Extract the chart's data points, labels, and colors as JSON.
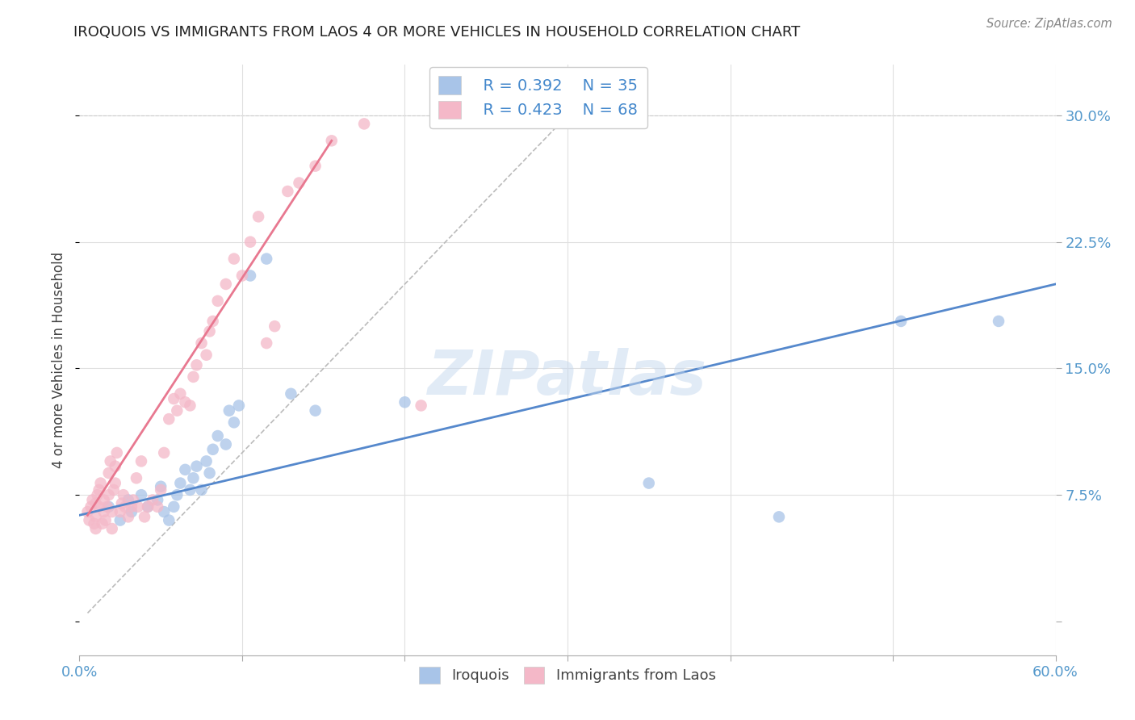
{
  "title": "IROQUOIS VS IMMIGRANTS FROM LAOS 4 OR MORE VEHICLES IN HOUSEHOLD CORRELATION CHART",
  "source": "Source: ZipAtlas.com",
  "ylabel": "4 or more Vehicles in Household",
  "xlim": [
    0.0,
    0.6
  ],
  "ylim": [
    -0.02,
    0.33
  ],
  "xticks": [
    0.0,
    0.1,
    0.2,
    0.3,
    0.4,
    0.5,
    0.6
  ],
  "xticklabels": [
    "0.0%",
    "",
    "",
    "",
    "",
    "",
    "60.0%"
  ],
  "yticks": [
    0.0,
    0.075,
    0.15,
    0.225,
    0.3
  ],
  "yticklabels": [
    "",
    "7.5%",
    "15.0%",
    "22.5%",
    "30.0%"
  ],
  "legend_r1": "R = 0.392",
  "legend_n1": "N = 35",
  "legend_r2": "R = 0.423",
  "legend_n2": "N = 68",
  "legend_color1": "#a8c4e8",
  "legend_color2": "#f4b8c8",
  "dot_color1": "#a8c4e8",
  "dot_color2": "#f4b8c8",
  "line_color1": "#5588cc",
  "line_color2": "#e87890",
  "diagonal_color": "#bbbbbb",
  "watermark": "ZIPatlas",
  "blue_line_x": [
    0.0,
    0.6
  ],
  "blue_line_y": [
    0.063,
    0.2
  ],
  "pink_line_x": [
    0.005,
    0.155
  ],
  "pink_line_y": [
    0.063,
    0.285
  ],
  "diag_line_x": [
    0.005,
    0.3
  ],
  "diag_line_y": [
    0.005,
    0.3
  ],
  "scatter1_x": [
    0.018,
    0.025,
    0.03,
    0.032,
    0.038,
    0.042,
    0.048,
    0.05,
    0.052,
    0.055,
    0.058,
    0.06,
    0.062,
    0.065,
    0.068,
    0.07,
    0.072,
    0.075,
    0.078,
    0.08,
    0.082,
    0.085,
    0.09,
    0.092,
    0.095,
    0.098,
    0.105,
    0.115,
    0.13,
    0.145,
    0.2,
    0.35,
    0.43,
    0.505,
    0.565
  ],
  "scatter1_y": [
    0.068,
    0.06,
    0.072,
    0.065,
    0.075,
    0.068,
    0.072,
    0.08,
    0.065,
    0.06,
    0.068,
    0.075,
    0.082,
    0.09,
    0.078,
    0.085,
    0.092,
    0.078,
    0.095,
    0.088,
    0.102,
    0.11,
    0.105,
    0.125,
    0.118,
    0.128,
    0.205,
    0.215,
    0.135,
    0.125,
    0.13,
    0.082,
    0.062,
    0.178,
    0.178
  ],
  "scatter2_x": [
    0.005,
    0.006,
    0.007,
    0.008,
    0.009,
    0.01,
    0.01,
    0.01,
    0.011,
    0.012,
    0.012,
    0.013,
    0.014,
    0.015,
    0.015,
    0.016,
    0.017,
    0.018,
    0.018,
    0.019,
    0.02,
    0.02,
    0.021,
    0.022,
    0.022,
    0.023,
    0.025,
    0.026,
    0.027,
    0.028,
    0.03,
    0.032,
    0.033,
    0.035,
    0.036,
    0.038,
    0.04,
    0.042,
    0.045,
    0.048,
    0.05,
    0.052,
    0.055,
    0.058,
    0.06,
    0.062,
    0.065,
    0.068,
    0.07,
    0.072,
    0.075,
    0.078,
    0.08,
    0.082,
    0.085,
    0.09,
    0.095,
    0.1,
    0.105,
    0.11,
    0.115,
    0.12,
    0.128,
    0.135,
    0.145,
    0.155,
    0.175,
    0.21
  ],
  "scatter2_y": [
    0.065,
    0.06,
    0.068,
    0.072,
    0.058,
    0.062,
    0.055,
    0.07,
    0.075,
    0.068,
    0.078,
    0.082,
    0.058,
    0.065,
    0.072,
    0.06,
    0.068,
    0.075,
    0.088,
    0.095,
    0.055,
    0.065,
    0.078,
    0.082,
    0.092,
    0.1,
    0.065,
    0.07,
    0.075,
    0.068,
    0.062,
    0.068,
    0.072,
    0.085,
    0.068,
    0.095,
    0.062,
    0.068,
    0.072,
    0.068,
    0.078,
    0.1,
    0.12,
    0.132,
    0.125,
    0.135,
    0.13,
    0.128,
    0.145,
    0.152,
    0.165,
    0.158,
    0.172,
    0.178,
    0.19,
    0.2,
    0.215,
    0.205,
    0.225,
    0.24,
    0.165,
    0.175,
    0.255,
    0.26,
    0.27,
    0.285,
    0.295,
    0.128
  ],
  "background_color": "#ffffff",
  "grid_color": "#e0e0e0",
  "tick_color": "#5599cc",
  "label_color": "#444444",
  "title_color": "#222222",
  "source_color": "#888888"
}
